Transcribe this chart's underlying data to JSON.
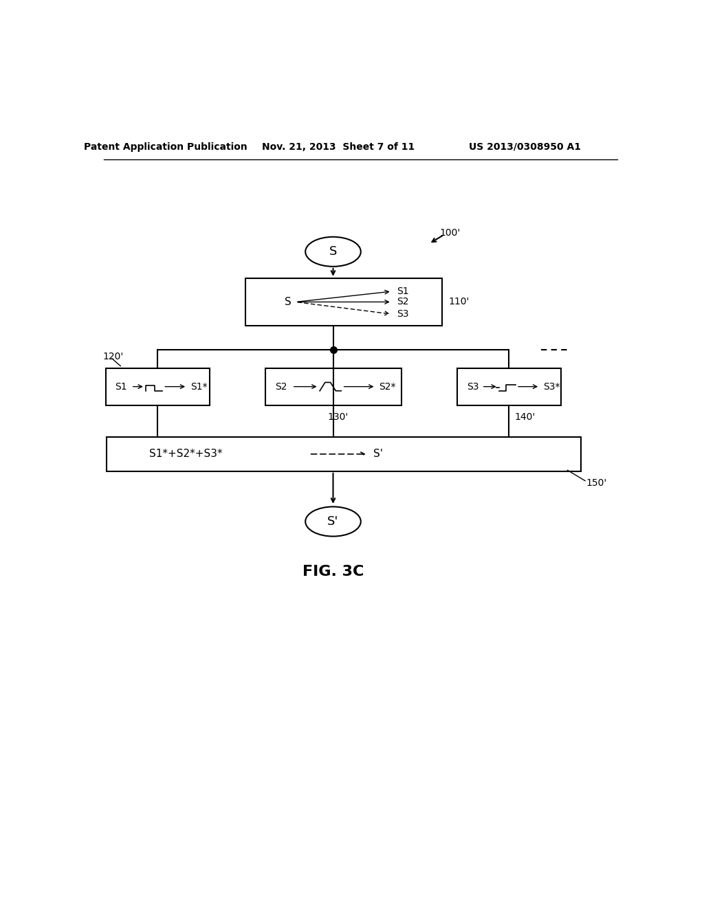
{
  "bg_color": "#ffffff",
  "header_left": "Patent Application Publication",
  "header_mid": "Nov. 21, 2013  Sheet 7 of 11",
  "header_right": "US 2013/0308950 A1",
  "fig_label": "FIG. 3C",
  "label_100": "100'",
  "label_110": "110'",
  "label_120": "120'",
  "label_130": "130'",
  "label_140": "140'",
  "label_150": "150'"
}
